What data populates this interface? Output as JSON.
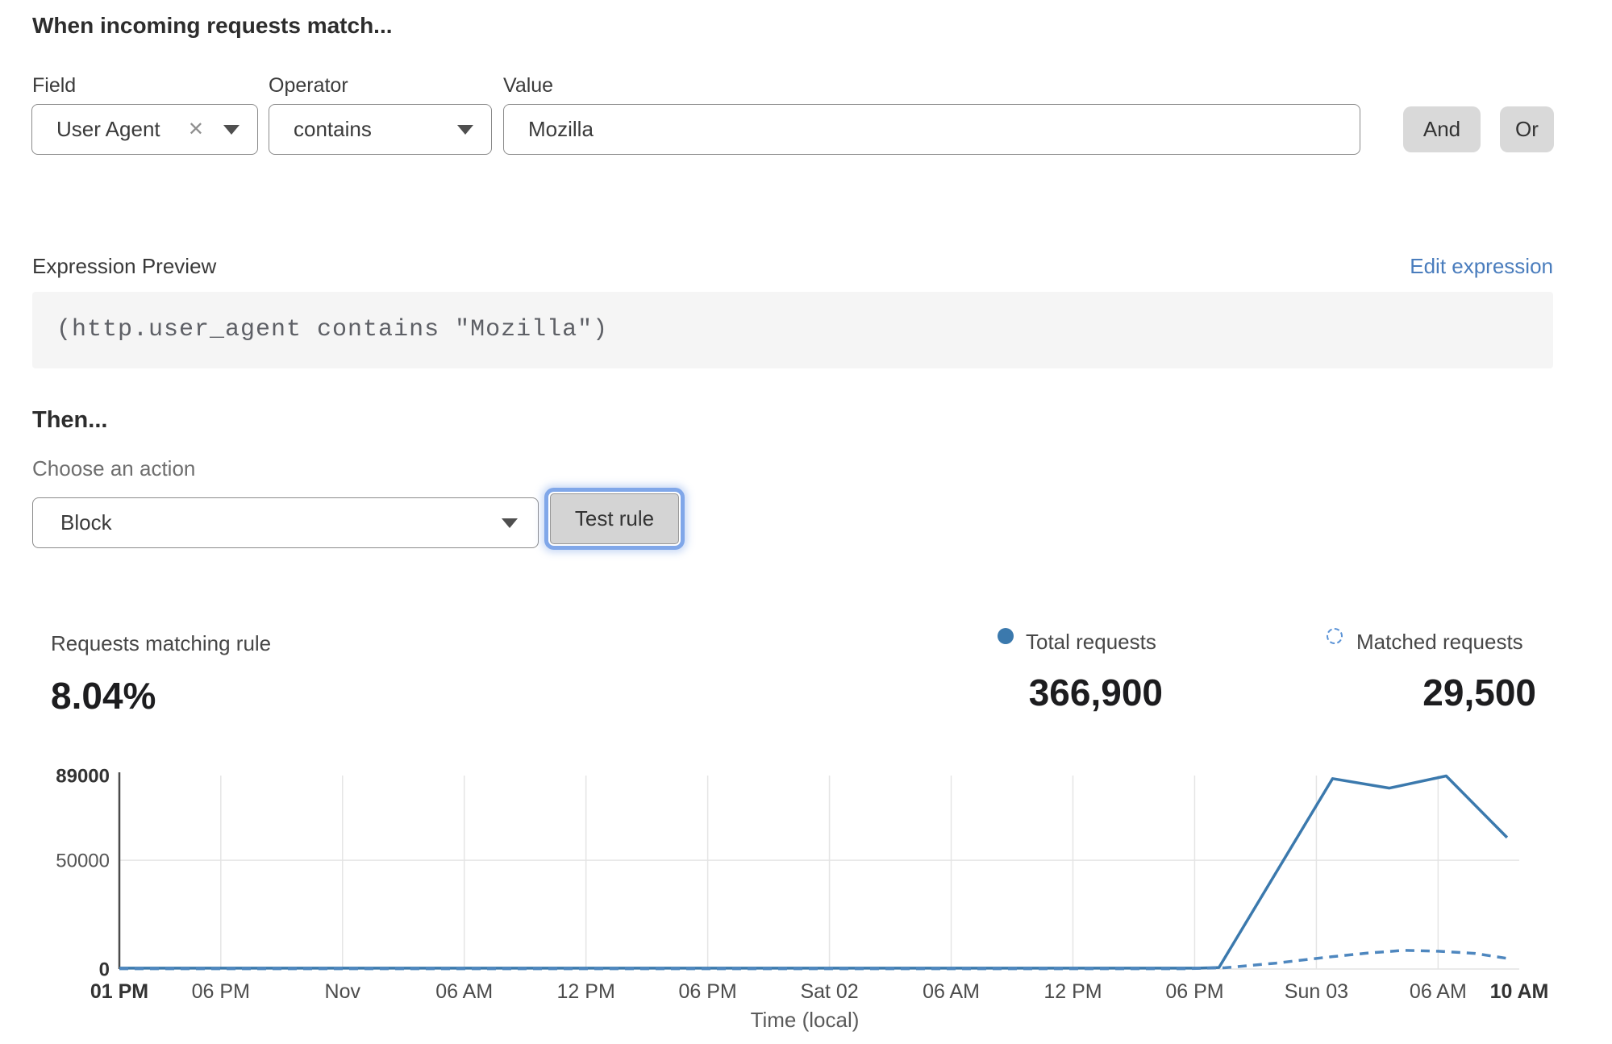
{
  "colors": {
    "accent_blue": "#3b79ad",
    "dashed_blue": "#4e87bf",
    "legend_dashed_blue": "#5b93d6",
    "link_blue": "#4a7dbd"
  },
  "match_section": {
    "title": "When incoming requests match...",
    "field_label": "Field",
    "field_value": "User Agent",
    "operator_label": "Operator",
    "operator_value": "contains",
    "value_label": "Value",
    "value_text": "Mozilla",
    "and_button": "And",
    "or_button": "Or"
  },
  "expression": {
    "label": "Expression Preview",
    "edit_link": "Edit expression",
    "code": "(http.user_agent contains \"Mozilla\")"
  },
  "action_section": {
    "title": "Then...",
    "choose_label": "Choose an action",
    "action_value": "Block",
    "test_button": "Test rule"
  },
  "stats": {
    "matching_label": "Requests matching rule",
    "matching_value": "8.04%",
    "total_label": "Total requests",
    "total_value": "366,900",
    "matched_label": "Matched requests",
    "matched_value": "29,500"
  },
  "chart_data": {
    "type": "line",
    "title": "",
    "xlabel": "Time (local)",
    "ylabel": "",
    "ylim": [
      0,
      89000
    ],
    "x_hours_range": [
      0,
      69
    ],
    "grid": true,
    "legend_position": "top-right",
    "y_ticks": [
      {
        "value": 0,
        "label": "0",
        "bold": true
      },
      {
        "value": 50000,
        "label": "50000",
        "bold": false
      },
      {
        "value": 89000,
        "label": "89000",
        "bold": true
      }
    ],
    "x_ticks": [
      {
        "h": 0,
        "label": "01 PM",
        "bold": true,
        "grid": false
      },
      {
        "h": 5,
        "label": "06 PM",
        "bold": false,
        "grid": true
      },
      {
        "h": 11,
        "label": "Nov",
        "bold": false,
        "grid": true
      },
      {
        "h": 17,
        "label": "06 AM",
        "bold": false,
        "grid": true
      },
      {
        "h": 23,
        "label": "12 PM",
        "bold": false,
        "grid": true
      },
      {
        "h": 29,
        "label": "06 PM",
        "bold": false,
        "grid": true
      },
      {
        "h": 35,
        "label": "Sat 02",
        "bold": false,
        "grid": true
      },
      {
        "h": 41,
        "label": "06 AM",
        "bold": false,
        "grid": true
      },
      {
        "h": 47,
        "label": "12 PM",
        "bold": false,
        "grid": true
      },
      {
        "h": 53,
        "label": "06 PM",
        "bold": false,
        "grid": true
      },
      {
        "h": 59,
        "label": "Sun 03",
        "bold": false,
        "grid": true
      },
      {
        "h": 65,
        "label": "06 AM",
        "bold": false,
        "grid": true
      },
      {
        "h": 69,
        "label": "10 AM",
        "bold": true,
        "grid": false
      }
    ],
    "series": [
      {
        "name": "Total requests",
        "style": "solid",
        "color": "#3b79ad",
        "points": [
          [
            0,
            400
          ],
          [
            53.2,
            400
          ],
          [
            54.2,
            700
          ],
          [
            59.8,
            87600
          ],
          [
            62.6,
            83200
          ],
          [
            65.4,
            88800
          ],
          [
            68.4,
            60500
          ]
        ]
      },
      {
        "name": "Matched requests",
        "style": "dashed",
        "color": "#4e87bf",
        "points": [
          [
            0,
            150
          ],
          [
            52.5,
            150
          ],
          [
            54.5,
            600
          ],
          [
            57,
            2700
          ],
          [
            59.5,
            5400
          ],
          [
            61.5,
            7300
          ],
          [
            63.3,
            8600
          ],
          [
            65,
            8200
          ],
          [
            66.8,
            7200
          ],
          [
            68.4,
            4900
          ]
        ]
      }
    ]
  }
}
